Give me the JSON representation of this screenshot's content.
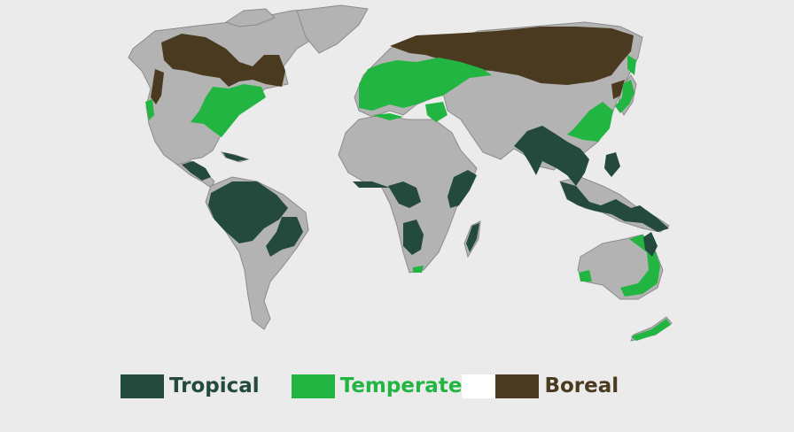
{
  "colors": {
    "background": "#ebebeb",
    "land": "#b3b3b3",
    "coast": "#8c8c8c",
    "tropical": "#234a3c",
    "temperate": "#22b542",
    "boreal": "#4a3a1f"
  },
  "legend": {
    "tropical": "Tropical",
    "temperate": "Temperate",
    "boreal": "Boreal"
  }
}
